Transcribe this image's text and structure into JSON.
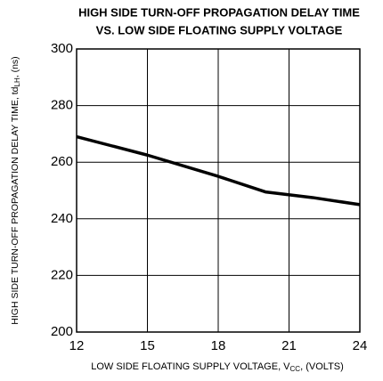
{
  "chart_data": {
    "type": "line",
    "title": [
      "HIGH SIDE TURN-OFF PROPAGATION DELAY TIME",
      "VS. LOW SIDE FLOATING SUPPLY VOLTAGE"
    ],
    "xlabel": [
      "LOW SIDE FLOATING SUPPLY VOLTAGE, V",
      "CC",
      ", (VOLTS)"
    ],
    "ylabel": [
      "HIGH SIDE TURN-OFF PROPAGATION DELAY TIME, td",
      "LH",
      ", (ns)"
    ],
    "x": [
      12,
      15,
      18,
      20,
      22,
      24
    ],
    "series": [
      {
        "color": "#000000",
        "values": [
          269,
          262.5,
          255,
          249.5,
          247.5,
          245
        ]
      }
    ],
    "xlim": [
      12,
      24
    ],
    "xticks": [
      12,
      15,
      18,
      21,
      24
    ],
    "ylim": [
      200,
      300
    ],
    "yticks": [
      200,
      220,
      240,
      260,
      280,
      300
    ],
    "grid": true
  }
}
